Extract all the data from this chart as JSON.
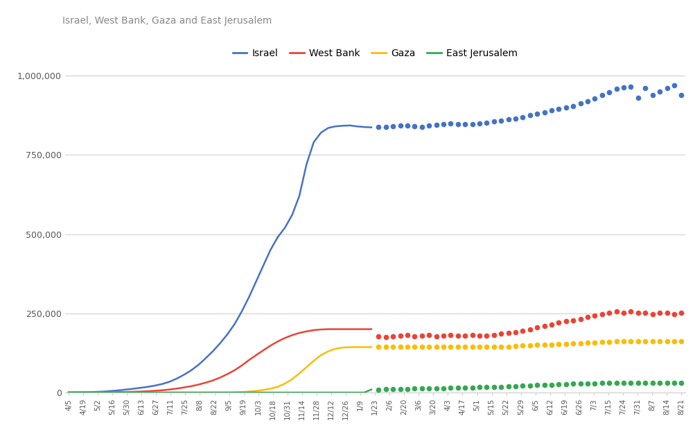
{
  "title": "Israel, West Bank, Gaza and East Jerusalem",
  "colors": {
    "Israel": "#4472C4",
    "West_Bank": "#EA4335",
    "Gaza": "#FBBC04",
    "East_Jerusalem": "#34A853"
  },
  "ylim": [
    0,
    1050000
  ],
  "yticks": [
    0,
    250000,
    500000,
    750000,
    1000000
  ],
  "ytick_labels": [
    "0",
    "250,000",
    "500,000",
    "750,000",
    "1,000,000"
  ],
  "xtick_labels": [
    "4/5",
    "4/19",
    "5/2",
    "5/16",
    "5/30",
    "6/13",
    "6/27",
    "7/11",
    "7/25",
    "8/8",
    "8/22",
    "9/5",
    "9/19",
    "10/3",
    "10/18",
    "10/31",
    "11/14",
    "11/28",
    "12/12",
    "12/26",
    "1/9",
    "1/23",
    "2/6",
    "2/20",
    "3/6",
    "3/20",
    "4/3",
    "4/17",
    "5/1",
    "5/15",
    "5/22",
    "5/29",
    "6/5",
    "6/12",
    "6/19",
    "6/26",
    "7/3",
    "7/15",
    "7/24",
    "7/31",
    "8/7",
    "8/14",
    "8/21"
  ],
  "background_color": "#ffffff",
  "grid_color": "#d0d0d0",
  "israel_solid_x": [
    0,
    1,
    2,
    3,
    4,
    5,
    6,
    7,
    8,
    9,
    10,
    11,
    12,
    13,
    14,
    15,
    16,
    17,
    18,
    19,
    20,
    21,
    22,
    23,
    24,
    25,
    26,
    27,
    28,
    29
  ],
  "israel_solid_y": [
    500,
    700,
    1000,
    1500,
    2200,
    3200,
    5000,
    7000,
    9500,
    12000,
    15000,
    18000,
    22000,
    27000,
    34000,
    44000,
    56000,
    70000,
    87000,
    108000,
    130000,
    155000,
    183000,
    215000,
    255000,
    300000,
    350000,
    400000,
    450000,
    490000
  ],
  "israel_dotted_x": [
    29,
    30,
    31,
    32,
    33,
    34,
    35,
    36,
    37,
    38,
    39,
    40,
    41,
    42
  ],
  "israel_dotted_y": [
    490000,
    520000,
    560000,
    620000,
    720000,
    790000,
    820000,
    835000,
    840000,
    842000,
    843000,
    840000,
    838000,
    837000
  ],
  "israel_dots_x": [
    43,
    44,
    45,
    46,
    47,
    48,
    49,
    50,
    51,
    52,
    53,
    54,
    55,
    56,
    57,
    58,
    59,
    60,
    61,
    62,
    63,
    64,
    65,
    66,
    67,
    68,
    69,
    70,
    71,
    72,
    73,
    74,
    75,
    76,
    77,
    78,
    79,
    80,
    81,
    82,
    83,
    84,
    85
  ],
  "israel_dots_y": [
    838000,
    838000,
    840000,
    842000,
    843000,
    840000,
    838000,
    842000,
    845000,
    848000,
    850000,
    848000,
    848000,
    848000,
    850000,
    852000,
    855000,
    858000,
    862000,
    865000,
    870000,
    875000,
    880000,
    885000,
    890000,
    895000,
    900000,
    905000,
    913000,
    920000,
    928000,
    938000,
    948000,
    958000,
    963000,
    965000,
    930000,
    960000,
    940000,
    950000,
    960000,
    970000,
    940000
  ],
  "wb_solid_x": [
    0,
    1,
    2,
    3,
    4,
    5,
    6,
    7,
    8,
    9,
    10,
    11,
    12,
    13,
    14,
    15,
    16,
    17,
    18,
    19,
    20,
    21,
    22,
    23,
    24,
    25,
    26,
    27,
    28,
    29,
    30,
    31,
    32,
    33,
    34,
    35,
    36,
    37,
    38,
    39,
    40,
    41,
    42
  ],
  "wb_solid_y": [
    0,
    0,
    100,
    200,
    350,
    500,
    800,
    1200,
    1700,
    2400,
    3200,
    4200,
    5500,
    7200,
    9500,
    12500,
    16000,
    20000,
    25000,
    31000,
    38000,
    47000,
    58000,
    70000,
    85000,
    102000,
    118000,
    133000,
    148000,
    161000,
    172000,
    181000,
    188000,
    193000,
    197000,
    199000,
    200000,
    200000,
    200000,
    200000,
    200000,
    200000,
    200000
  ],
  "wb_dots_x": [
    43,
    44,
    45,
    46,
    47,
    48,
    49,
    50,
    51,
    52,
    53,
    54,
    55,
    56,
    57,
    58,
    59,
    60,
    61,
    62,
    63,
    64,
    65,
    66,
    67,
    68,
    69,
    70,
    71,
    72,
    73,
    74,
    75,
    76,
    77,
    78,
    79,
    80,
    81,
    82,
    83,
    84,
    85
  ],
  "wb_dots_y": [
    178000,
    175000,
    178000,
    180000,
    182000,
    178000,
    180000,
    182000,
    178000,
    180000,
    182000,
    180000,
    180000,
    182000,
    180000,
    180000,
    182000,
    185000,
    188000,
    190000,
    195000,
    200000,
    205000,
    210000,
    215000,
    220000,
    225000,
    228000,
    232000,
    238000,
    243000,
    248000,
    252000,
    255000,
    252000,
    255000,
    252000,
    252000,
    248000,
    252000,
    252000,
    248000,
    252000
  ],
  "gaza_solid_x": [
    0,
    1,
    2,
    3,
    4,
    5,
    6,
    7,
    8,
    9,
    10,
    11,
    12,
    13,
    14,
    15,
    16,
    17,
    18,
    19,
    20,
    21,
    22,
    23,
    24,
    25,
    26,
    27,
    28,
    29,
    30,
    31,
    32,
    33,
    34,
    35,
    36,
    37,
    38,
    39,
    40,
    41,
    42
  ],
  "gaza_solid_y": [
    0,
    0,
    0,
    0,
    0,
    0,
    0,
    0,
    0,
    0,
    0,
    0,
    0,
    0,
    0,
    0,
    0,
    0,
    0,
    0,
    0,
    100,
    300,
    700,
    1500,
    3000,
    5000,
    8000,
    12000,
    18000,
    28000,
    42000,
    60000,
    80000,
    100000,
    118000,
    130000,
    138000,
    142000,
    143000,
    143500,
    143500,
    143500
  ],
  "gaza_dots_x": [
    43,
    44,
    45,
    46,
    47,
    48,
    49,
    50,
    51,
    52,
    53,
    54,
    55,
    56,
    57,
    58,
    59,
    60,
    61,
    62,
    63,
    64,
    65,
    66,
    67,
    68,
    69,
    70,
    71,
    72,
    73,
    74,
    75,
    76,
    77,
    78,
    79,
    80,
    81,
    82,
    83,
    84,
    85
  ],
  "gaza_dots_y": [
    143500,
    143500,
    143500,
    143500,
    143500,
    143500,
    143500,
    143500,
    143500,
    143500,
    143500,
    143500,
    143500,
    143500,
    143500,
    143500,
    143500,
    143500,
    145000,
    147000,
    148000,
    149000,
    150000,
    151000,
    152000,
    153000,
    154000,
    155000,
    156000,
    157000,
    158000,
    159000,
    160000,
    161000,
    162000,
    162000,
    162000,
    162000,
    162000,
    162000,
    162000,
    162000,
    163000
  ],
  "ej_solid_x": [
    0,
    1,
    2,
    3,
    4,
    5,
    6,
    7,
    8,
    9,
    10,
    11,
    12,
    13,
    14,
    15,
    16,
    17,
    18,
    19,
    20,
    21,
    22,
    23,
    24,
    25,
    26,
    27,
    28,
    29,
    30,
    31,
    32,
    33,
    34,
    35,
    36,
    37,
    38,
    39,
    40,
    41,
    42
  ],
  "ej_solid_y": [
    0,
    0,
    0,
    0,
    0,
    0,
    0,
    0,
    0,
    0,
    0,
    0,
    0,
    0,
    0,
    0,
    0,
    0,
    0,
    0,
    0,
    0,
    0,
    0,
    0,
    0,
    0,
    0,
    0,
    0,
    0,
    0,
    0,
    0,
    0,
    0,
    0,
    0,
    0,
    0,
    0,
    0,
    9500
  ],
  "ej_dots_x": [
    43,
    44,
    45,
    46,
    47,
    48,
    49,
    50,
    51,
    52,
    53,
    54,
    55,
    56,
    57,
    58,
    59,
    60,
    61,
    62,
    63,
    64,
    65,
    66,
    67,
    68,
    69,
    70,
    71,
    72,
    73,
    74,
    75,
    76,
    77,
    78,
    79,
    80,
    81,
    82,
    83,
    84,
    85
  ],
  "ej_dots_y": [
    9500,
    10000,
    10500,
    11000,
    11500,
    12000,
    12500,
    13000,
    13500,
    14000,
    14500,
    15000,
    15500,
    16000,
    16500,
    17000,
    17500,
    18000,
    19000,
    20000,
    21000,
    22000,
    23000,
    24000,
    25000,
    26000,
    27000,
    27500,
    28000,
    28500,
    29000,
    29500,
    30000,
    30000,
    30000,
    30000,
    30000,
    30000,
    30000,
    30000,
    30000,
    30000,
    30500
  ]
}
